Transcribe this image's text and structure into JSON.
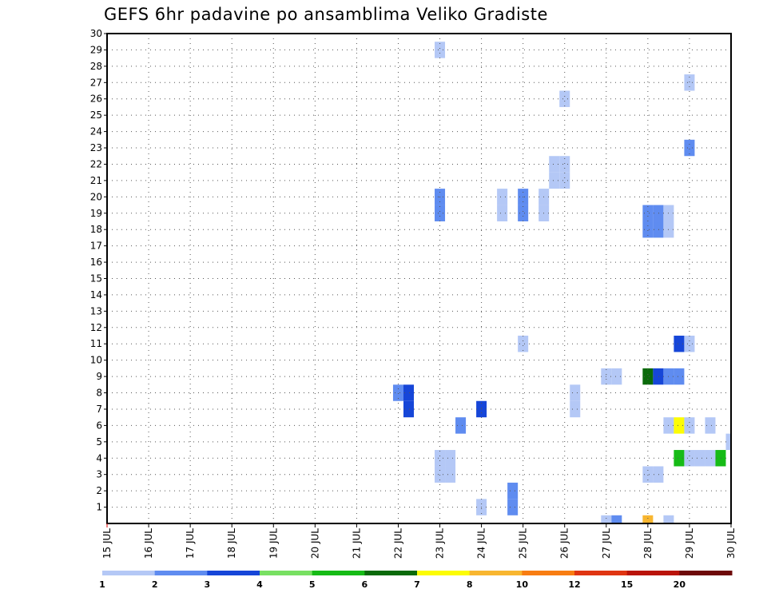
{
  "chart_data": {
    "type": "heatmap",
    "title": "GEFS 6hr padavine po ansamblima Veliko Gradiste",
    "x_ticks": [
      "15 JUL",
      "16 JUL",
      "17 JUL",
      "18 JUL",
      "19 JUL",
      "20 JUL",
      "21 JUL",
      "22 JUL",
      "23 JUL",
      "24 JUL",
      "25 JUL",
      "26 JUL",
      "27 JUL",
      "28 JUL",
      "29 JUL",
      "30 JUL"
    ],
    "y_ticks": [
      1,
      2,
      3,
      4,
      5,
      6,
      7,
      8,
      9,
      10,
      11,
      12,
      13,
      14,
      15,
      16,
      17,
      18,
      19,
      20,
      21,
      22,
      23,
      24,
      25,
      26,
      27,
      28,
      29,
      30
    ],
    "xlim": [
      0,
      15
    ],
    "ylim": [
      0,
      30
    ],
    "grid": true,
    "color_scale": {
      "labels": [
        "1",
        "2",
        "3",
        "4",
        "5",
        "6",
        "7",
        "8",
        "10",
        "12",
        "15",
        "20"
      ],
      "colors": [
        "#b4c8f6",
        "#5f8cf0",
        "#1646d8",
        "#78e062",
        "#16bb16",
        "#0a6a0a",
        "#fcfc05",
        "#f8b630",
        "#f87d12",
        "#e03512",
        "#ba140a",
        "#6e0a0a"
      ]
    },
    "cells": [
      {
        "x": 8.0,
        "y": 29,
        "c": 0
      },
      {
        "x": 14.0,
        "y": 27,
        "c": 0
      },
      {
        "x": 11.0,
        "y": 26,
        "c": 0
      },
      {
        "x": 14.0,
        "y": 23,
        "c": 1
      },
      {
        "x": 10.75,
        "y": 22,
        "c": 0
      },
      {
        "x": 11.0,
        "y": 22,
        "c": 0
      },
      {
        "x": 10.75,
        "y": 21,
        "c": 0
      },
      {
        "x": 11.0,
        "y": 21,
        "c": 0
      },
      {
        "x": 8.0,
        "y": 20,
        "c": 1
      },
      {
        "x": 9.5,
        "y": 20,
        "c": 0
      },
      {
        "x": 10.0,
        "y": 20,
        "c": 1
      },
      {
        "x": 10.5,
        "y": 20,
        "c": 0
      },
      {
        "x": 8.0,
        "y": 19,
        "c": 1
      },
      {
        "x": 9.5,
        "y": 19,
        "c": 0
      },
      {
        "x": 10.0,
        "y": 19,
        "c": 1
      },
      {
        "x": 10.5,
        "y": 19,
        "c": 0
      },
      {
        "x": 13.0,
        "y": 19,
        "c": 1
      },
      {
        "x": 13.25,
        "y": 19,
        "c": 1
      },
      {
        "x": 13.5,
        "y": 19,
        "c": 0
      },
      {
        "x": 13.0,
        "y": 18,
        "c": 1
      },
      {
        "x": 13.25,
        "y": 18,
        "c": 1
      },
      {
        "x": 13.5,
        "y": 18,
        "c": 0
      },
      {
        "x": 10.0,
        "y": 11,
        "c": 0
      },
      {
        "x": 13.75,
        "y": 11,
        "c": 2
      },
      {
        "x": 14.0,
        "y": 11,
        "c": 0
      },
      {
        "x": 12.0,
        "y": 9,
        "c": 0
      },
      {
        "x": 12.25,
        "y": 9,
        "c": 0
      },
      {
        "x": 13.0,
        "y": 9,
        "c": 5
      },
      {
        "x": 13.25,
        "y": 9,
        "c": 2
      },
      {
        "x": 13.5,
        "y": 9,
        "c": 1
      },
      {
        "x": 13.75,
        "y": 9,
        "c": 1
      },
      {
        "x": 7.0,
        "y": 8,
        "c": 1
      },
      {
        "x": 7.25,
        "y": 8,
        "c": 2
      },
      {
        "x": 11.25,
        "y": 8,
        "c": 0
      },
      {
        "x": 7.25,
        "y": 7,
        "c": 2
      },
      {
        "x": 11.25,
        "y": 7,
        "c": 0
      },
      {
        "x": 9.0,
        "y": 7,
        "c": 2
      },
      {
        "x": 8.5,
        "y": 6,
        "c": 1
      },
      {
        "x": 13.5,
        "y": 6,
        "c": 0
      },
      {
        "x": 13.75,
        "y": 6,
        "c": 6
      },
      {
        "x": 14.0,
        "y": 6,
        "c": 0
      },
      {
        "x": 14.5,
        "y": 6,
        "c": 0
      },
      {
        "x": 15.0,
        "y": 5,
        "c": 0
      },
      {
        "x": 8.0,
        "y": 4,
        "c": 0
      },
      {
        "x": 8.25,
        "y": 4,
        "c": 0
      },
      {
        "x": 13.75,
        "y": 4,
        "c": 4
      },
      {
        "x": 14.0,
        "y": 4,
        "c": 0
      },
      {
        "x": 14.25,
        "y": 4,
        "c": 0
      },
      {
        "x": 14.5,
        "y": 4,
        "c": 0
      },
      {
        "x": 14.75,
        "y": 4,
        "c": 4
      },
      {
        "x": 8.0,
        "y": 3,
        "c": 0
      },
      {
        "x": 8.25,
        "y": 3,
        "c": 0
      },
      {
        "x": 13.0,
        "y": 3,
        "c": 0
      },
      {
        "x": 13.25,
        "y": 3,
        "c": 0
      },
      {
        "x": 9.75,
        "y": 2,
        "c": 1
      },
      {
        "x": 9.75,
        "y": 1,
        "c": 1
      },
      {
        "x": 9.0,
        "y": 1,
        "c": 0
      },
      {
        "x": 12.0,
        "y": 0,
        "c": 0
      },
      {
        "x": 12.25,
        "y": 0,
        "c": 1
      },
      {
        "x": 13.0,
        "y": 0,
        "c": 7
      },
      {
        "x": 13.5,
        "y": 0,
        "c": 0
      }
    ]
  }
}
